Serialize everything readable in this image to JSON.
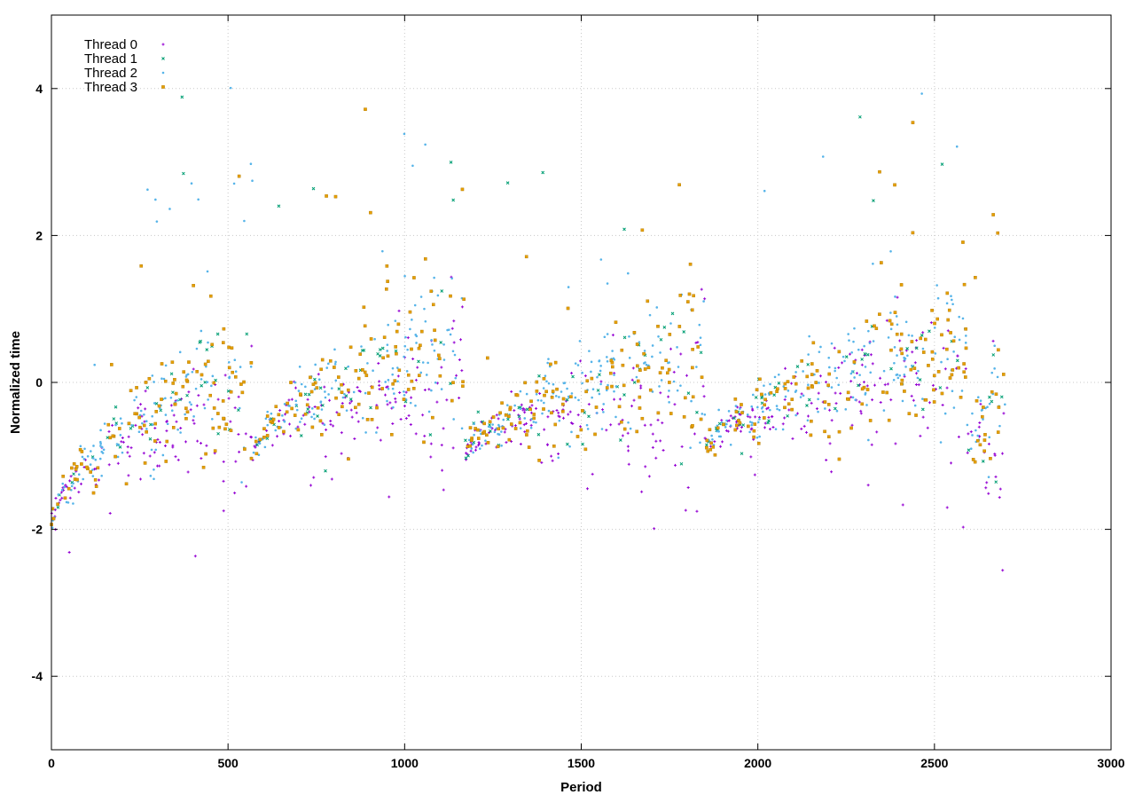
{
  "chart_data": {
    "type": "scatter",
    "title": "",
    "xlabel": "Period",
    "ylabel": "Normalized time",
    "xlim": [
      0,
      3000
    ],
    "ylim": [
      -5,
      5
    ],
    "xticks": [
      0,
      500,
      1000,
      1500,
      2000,
      2500,
      3000
    ],
    "yticks": [
      -4,
      -2,
      0,
      2,
      4
    ],
    "xtick_labels": [
      "0",
      "500",
      "1000",
      "1500",
      "2000",
      "2500",
      "3000"
    ],
    "ytick_labels": [
      "-4",
      "-2",
      "0",
      "2",
      "4"
    ],
    "grid": true,
    "legend_position": "top-left",
    "series": [
      {
        "name": "Thread 0",
        "color": "#9400d3",
        "marker": "plus",
        "x_range": [
          0,
          2700
        ],
        "points_estimated_per_segment": 120,
        "spread_offset": -0.35
      },
      {
        "name": "Thread 1",
        "color": "#009e73",
        "marker": "cross",
        "x_range": [
          0,
          2700
        ],
        "points_estimated_per_segment": 40,
        "spread_offset": 0.1
      },
      {
        "name": "Thread 2",
        "color": "#56b4e9",
        "marker": "dot",
        "x_range": [
          0,
          2700
        ],
        "points_estimated_per_segment": 140,
        "spread_offset": 0.15
      },
      {
        "name": "Thread 3",
        "color": "#e69f00",
        "marker": "square",
        "x_range": [
          0,
          2700
        ],
        "points_estimated_per_segment": 110,
        "spread_offset": 0.05
      }
    ],
    "segments": [
      {
        "x_start": 0,
        "x_end": 570,
        "y_start": -2.0,
        "y_end": 0.1
      },
      {
        "x_start": 570,
        "x_end": 1170,
        "y_start": -1.0,
        "y_end": 0.4
      },
      {
        "x_start": 1170,
        "x_end": 1850,
        "y_start": -1.0,
        "y_end": 0.2
      },
      {
        "x_start": 1850,
        "x_end": 2590,
        "y_start": -1.0,
        "y_end": 0.4
      },
      {
        "x_start": 2590,
        "x_end": 2700,
        "y_start": -0.9,
        "y_end": -0.5
      }
    ]
  }
}
